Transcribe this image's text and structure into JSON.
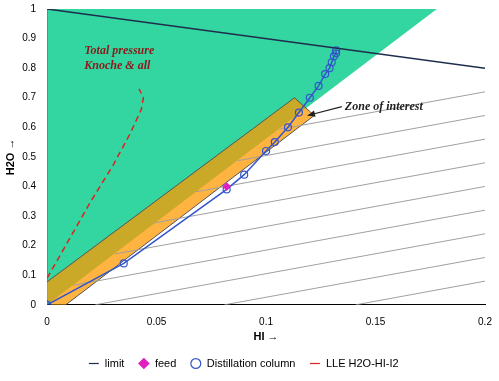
{
  "chart_data": {
    "type": "scatter",
    "x_label": "HI →",
    "y_label": "H2O →",
    "xlim": [
      0,
      0.2
    ],
    "ylim": [
      0,
      1
    ],
    "xticks": [
      0,
      0.05,
      0.1,
      0.15,
      0.2
    ],
    "yticks": [
      0,
      0.1,
      0.2,
      0.3,
      0.4,
      0.5,
      0.6,
      0.7,
      0.8,
      0.9,
      1
    ],
    "grid": false,
    "legend": "bottom",
    "regions": [
      {
        "color": "#33d6a0",
        "x": [
          0,
          0,
          0.178
        ],
        "y": [
          0,
          1,
          1
        ]
      },
      {
        "color": "#ff9a00",
        "x": [
          -0.005,
          0.113,
          0.122,
          0.005
        ],
        "y": [
          0.05,
          0.7,
          0.64,
          -0.02
        ]
      }
    ],
    "reference_lines": {
      "color": "#a0a0a0",
      "lines": [
        {
          "x": [
            0.106,
            0.2
          ],
          "y": [
            0.593,
            0.72
          ]
        },
        {
          "x": [
            0.087,
            0.2
          ],
          "y": [
            0.487,
            0.64
          ]
        },
        {
          "x": [
            0.068,
            0.2
          ],
          "y": [
            0.382,
            0.56
          ]
        },
        {
          "x": [
            0.049,
            0.2
          ],
          "y": [
            0.277,
            0.48
          ]
        },
        {
          "x": [
            0.031,
            0.2
          ],
          "y": [
            0.172,
            0.4
          ]
        },
        {
          "x": [
            0.012,
            0.2
          ],
          "y": [
            0.066,
            0.32
          ]
        },
        {
          "x": [
            0.022,
            0.2
          ],
          "y": [
            0,
            0.24
          ]
        },
        {
          "x": [
            0.081,
            0.2
          ],
          "y": [
            0,
            0.16
          ]
        },
        {
          "x": [
            0.141,
            0.2
          ],
          "y": [
            0,
            0.08
          ]
        }
      ]
    },
    "series": [
      {
        "name": "limit",
        "color": "#1f2d4d",
        "marker": "none",
        "line_style": "solid",
        "x": [
          0,
          0.2
        ],
        "y": [
          1,
          0.8
        ]
      },
      {
        "name": "feed",
        "color": "#e020c0",
        "marker": "diamond",
        "line_style": "none",
        "x": [
          0.082
        ],
        "y": [
          0.4
        ]
      },
      {
        "name": "Distillation column",
        "color": "#3355cc",
        "marker": "circle",
        "line_style": "solid",
        "x": [
          0,
          0.035,
          0.082,
          0.09,
          0.1,
          0.104,
          0.11,
          0.115,
          0.12,
          0.124,
          0.127,
          0.129,
          0.13,
          0.131,
          0.132,
          0.132
        ],
        "y": [
          0,
          0.14,
          0.39,
          0.44,
          0.52,
          0.55,
          0.6,
          0.65,
          0.7,
          0.74,
          0.78,
          0.8,
          0.82,
          0.84,
          0.85,
          0.86
        ]
      },
      {
        "name": "LLE H2O-HI-I2",
        "color": "#e02020",
        "marker": "none",
        "line_style": "dashed",
        "x": [
          0,
          0.01,
          0.02,
          0.03,
          0.038,
          0.043,
          0.044,
          0.042
        ],
        "y": [
          0.09,
          0.22,
          0.35,
          0.47,
          0.58,
          0.66,
          0.7,
          0.73
        ]
      }
    ],
    "annotations": [
      {
        "lines": [
          "Total pressure",
          "Knoche & all"
        ],
        "x": 0.017,
        "y": 0.86,
        "color": "#8b1a1a"
      },
      {
        "lines": [
          "Zone of interest"
        ],
        "x": 0.136,
        "y": 0.67,
        "color": "#222222",
        "arrow_to": [
          0.119,
          0.64
        ]
      }
    ]
  }
}
